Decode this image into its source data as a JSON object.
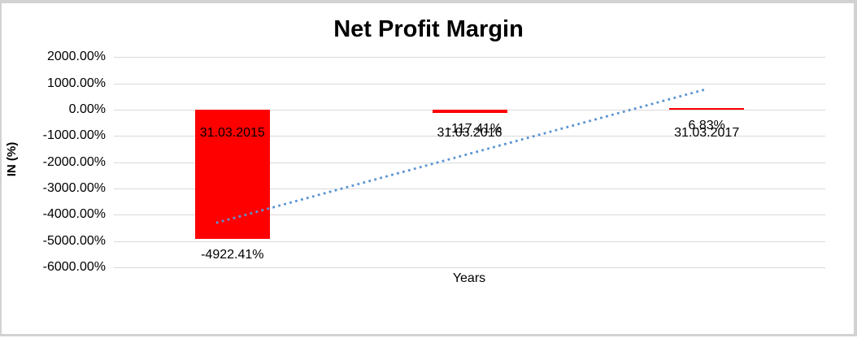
{
  "window": {
    "background": "#ffffff",
    "border_color": "#d2d2d2"
  },
  "chart_data": {
    "type": "bar",
    "title": "Net Profit Margin",
    "xlabel": "Years",
    "ylabel": "IN (%)",
    "categories": [
      "31.03.2015",
      "31.03.2016",
      "31.03.2017"
    ],
    "values": [
      -4922.41,
      -117.41,
      6.83
    ],
    "data_labels": [
      "-4922.41%",
      "-117.41%",
      "6.83%"
    ],
    "y_ticks": [
      "2000.00%",
      "1000.00%",
      "0.00%",
      "-1000.00%",
      "-2000.00%",
      "-3000.00%",
      "-4000.00%",
      "-5000.00%",
      "-6000.00%"
    ],
    "y_tick_values": [
      2000,
      1000,
      0,
      -1000,
      -2000,
      -3000,
      -4000,
      -5000,
      -6000
    ],
    "ylim": [
      -6000,
      2000
    ],
    "grid": true,
    "legend": "none",
    "bar_color": "#ff0000",
    "gridline_color": "#d9d9d9",
    "trendline": {
      "type": "linear",
      "style": "dotted",
      "color": "#5b94d2"
    }
  }
}
